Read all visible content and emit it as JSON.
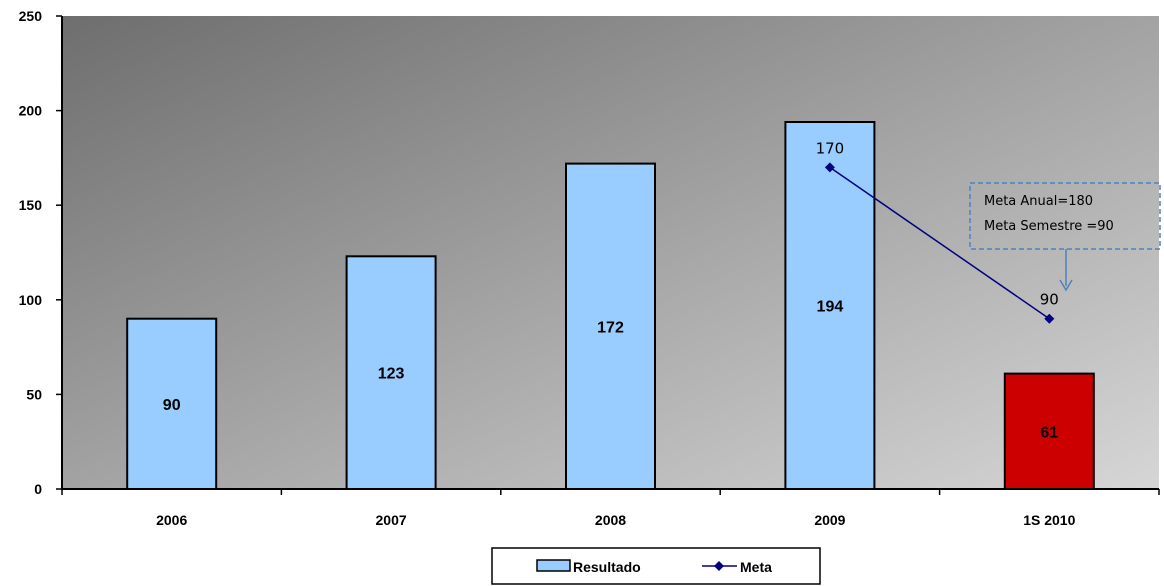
{
  "chart_data": {
    "type": "bar",
    "categories": [
      "2006",
      "2007",
      "2008",
      "2009",
      "1S 2010"
    ],
    "series": [
      {
        "name": "Resultado",
        "type": "bar",
        "values": [
          90,
          123,
          172,
          194,
          61
        ]
      },
      {
        "name": "Meta",
        "type": "line",
        "points": [
          {
            "x": "2009",
            "y": 170
          },
          {
            "x": "1S 2010",
            "y": 90
          }
        ]
      }
    ],
    "ylim": [
      0,
      250
    ],
    "yticks": [
      0,
      50,
      100,
      150,
      200,
      250
    ],
    "grid": false,
    "legend": "bottom-center",
    "annotation": {
      "lines": [
        "Meta Anual=180",
        "Meta Semestre  =90"
      ]
    },
    "colors": {
      "bar": "#99ccff",
      "bar_highlight": "#cc0000",
      "meta_line": "#000080",
      "note_border": "#4f81bd",
      "arrow": "#4f81bd"
    }
  }
}
